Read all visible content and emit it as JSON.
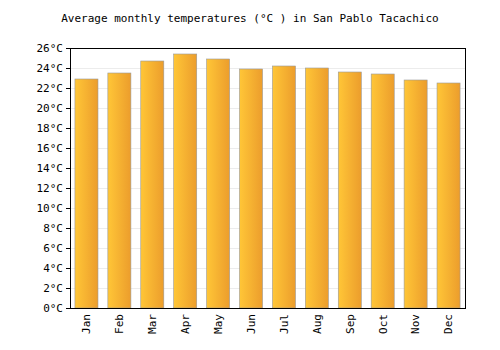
{
  "chart_data": {
    "type": "bar",
    "title": "Average monthly temperatures (°C ) in San Pablo Tacachico",
    "categories": [
      "Jan",
      "Feb",
      "Mar",
      "Apr",
      "May",
      "Jun",
      "Jul",
      "Aug",
      "Sep",
      "Oct",
      "Nov",
      "Dec"
    ],
    "values": [
      22.9,
      23.5,
      24.7,
      25.4,
      24.9,
      23.9,
      24.2,
      24.0,
      23.6,
      23.4,
      22.8,
      22.5
    ],
    "color": "#f9a62e",
    "ylim": [
      0,
      26
    ],
    "yticks": [
      {
        "value": 0,
        "label": "0°C"
      },
      {
        "value": 2,
        "label": "2°C"
      },
      {
        "value": 4,
        "label": "4°C"
      },
      {
        "value": 6,
        "label": "6°C"
      },
      {
        "value": 8,
        "label": "8°C"
      },
      {
        "value": 10,
        "label": "10°C"
      },
      {
        "value": 12,
        "label": "12°C"
      },
      {
        "value": 14,
        "label": "14°C"
      },
      {
        "value": 16,
        "label": "16°C"
      },
      {
        "value": 18,
        "label": "18°C"
      },
      {
        "value": 20,
        "label": "20°C"
      },
      {
        "value": 22,
        "label": "22°C"
      },
      {
        "value": 24,
        "label": "24°C"
      },
      {
        "value": 26,
        "label": "26°C"
      }
    ],
    "grid": true
  }
}
